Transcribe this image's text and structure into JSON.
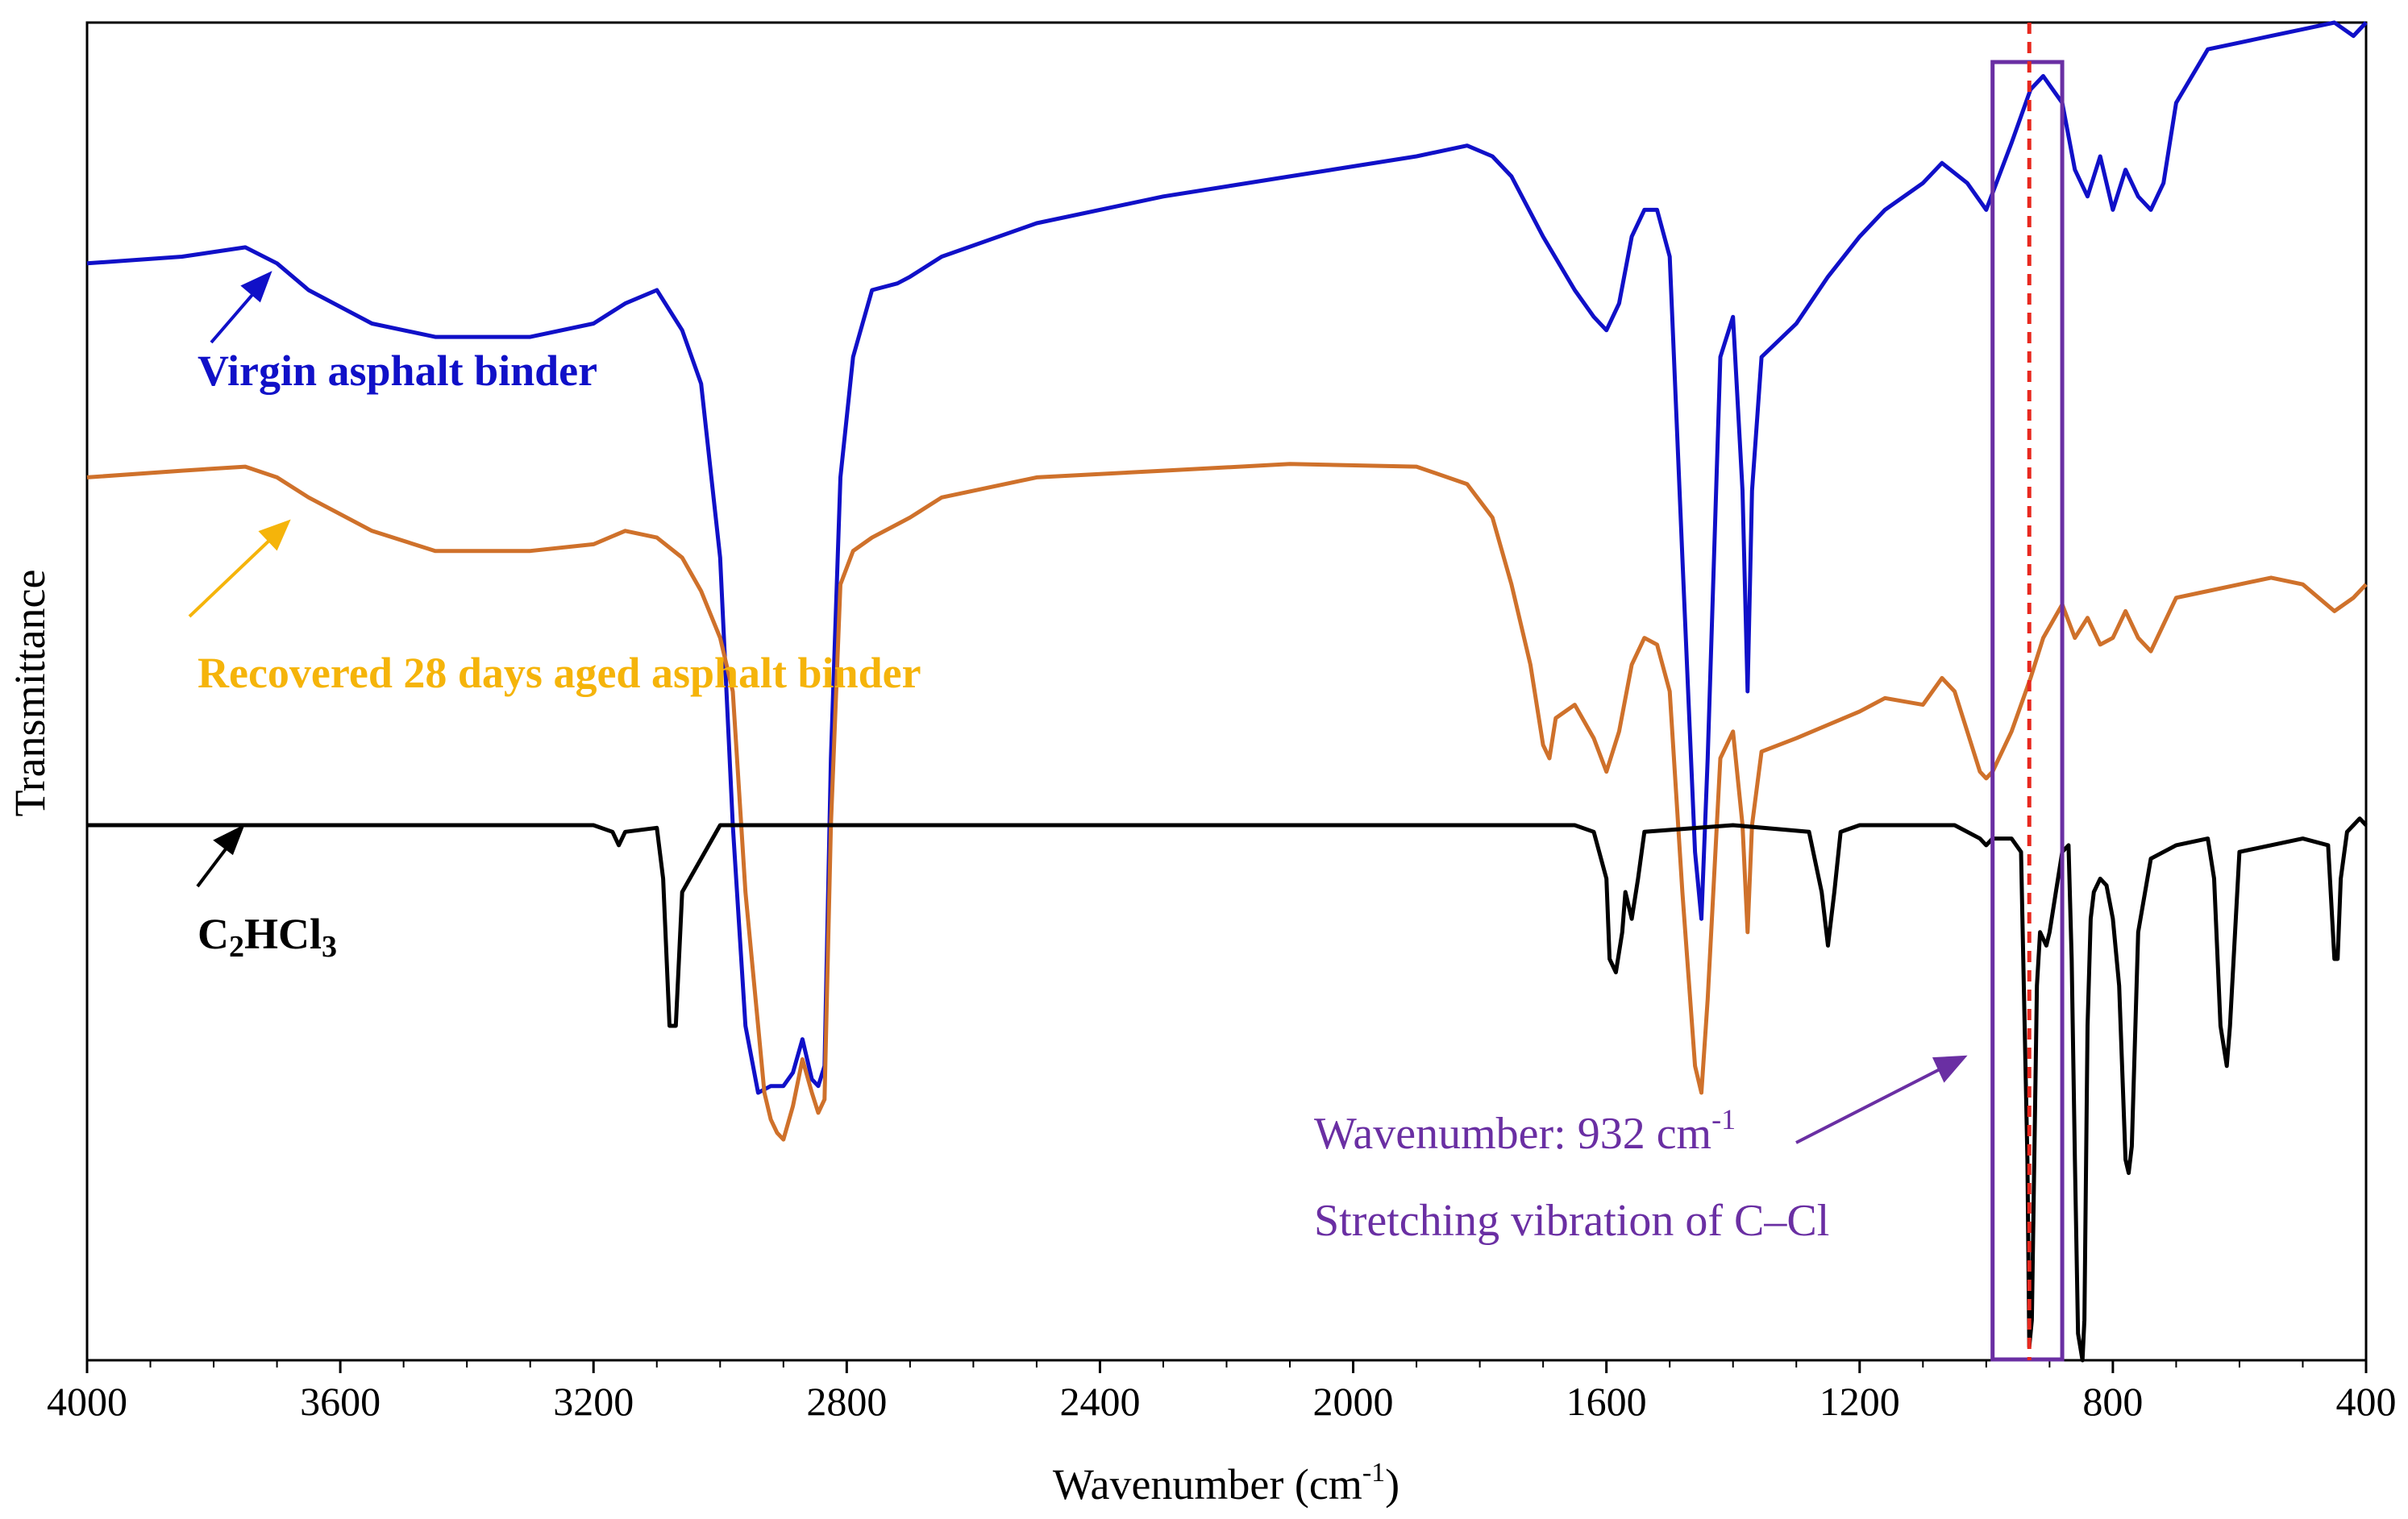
{
  "chart_data": {
    "type": "line",
    "title": "",
    "xlabel": "Wavenumber (cm",
    "xlabel_sup": "-1",
    "xlabel_close": ")",
    "ylabel": "Transmittance",
    "xlim": [
      4000,
      400
    ],
    "x_reversed": true,
    "xticks": [
      4000,
      3600,
      3200,
      2800,
      2400,
      2000,
      1600,
      1200,
      800,
      400
    ],
    "y_ticks_shown": false,
    "series": [
      {
        "name": "Virgin asphalt binder",
        "color": "#1010c8",
        "label_text": "Virgin asphalt binder",
        "x": [
          4000,
          3850,
          3750,
          3700,
          3650,
          3550,
          3450,
          3300,
          3200,
          3150,
          3100,
          3060,
          3030,
          3000,
          2980,
          2960,
          2940,
          2920,
          2900,
          2885,
          2870,
          2855,
          2845,
          2835,
          2825,
          2810,
          2790,
          2760,
          2720,
          2700,
          2650,
          2500,
          2300,
          2100,
          1900,
          1820,
          1780,
          1750,
          1700,
          1650,
          1620,
          1600,
          1580,
          1560,
          1540,
          1520,
          1500,
          1480,
          1460,
          1450,
          1440,
          1420,
          1400,
          1385,
          1377,
          1370,
          1355,
          1300,
          1250,
          1200,
          1160,
          1100,
          1070,
          1030,
          1000,
          960,
          930,
          910,
          880,
          860,
          840,
          820,
          800,
          780,
          760,
          740,
          720,
          700,
          650,
          600,
          550,
          500,
          450,
          420,
          400
        ],
        "y": [
          82.0,
          82.5,
          83.2,
          82.0,
          80.0,
          77.5,
          76.5,
          76.5,
          77.5,
          79.0,
          80.0,
          77.0,
          73.0,
          60.0,
          40.0,
          25.0,
          20.0,
          20.5,
          20.5,
          21.5,
          24.0,
          21.0,
          20.5,
          22.0,
          45.0,
          66.0,
          75.0,
          80.0,
          80.5,
          81.0,
          82.5,
          85.0,
          87.0,
          88.5,
          90.0,
          90.8,
          90.0,
          88.5,
          84.0,
          80.0,
          78.0,
          77.0,
          79.0,
          84.0,
          86.0,
          86.0,
          82.5,
          60.0,
          38.0,
          33.0,
          45.0,
          75.0,
          78.0,
          65.0,
          50.0,
          65.0,
          75.0,
          77.5,
          81.0,
          84.0,
          86.0,
          88.0,
          89.5,
          88.0,
          86.0,
          91.0,
          95.0,
          96.0,
          94.0,
          89.0,
          87.0,
          90.0,
          86.0,
          89.0,
          87.0,
          86.0,
          88.0,
          94.0,
          98.0,
          98.5,
          99.0,
          99.5,
          100.0,
          99.0,
          100.0
        ]
      },
      {
        "name": "Recovered 28 days aged asphalt binder",
        "color": "#cf712b",
        "label_text": "Recovered 28 days aged asphalt binder",
        "x": [
          4000,
          3850,
          3750,
          3700,
          3650,
          3550,
          3450,
          3300,
          3200,
          3150,
          3100,
          3060,
          3030,
          3000,
          2980,
          2960,
          2940,
          2930,
          2920,
          2910,
          2900,
          2885,
          2870,
          2855,
          2845,
          2835,
          2825,
          2810,
          2790,
          2760,
          2720,
          2700,
          2650,
          2500,
          2300,
          2100,
          1900,
          1820,
          1780,
          1750,
          1720,
          1700,
          1690,
          1680,
          1650,
          1620,
          1600,
          1580,
          1560,
          1540,
          1520,
          1500,
          1480,
          1460,
          1450,
          1440,
          1420,
          1400,
          1385,
          1377,
          1370,
          1355,
          1300,
          1250,
          1200,
          1160,
          1100,
          1070,
          1050,
          1030,
          1010,
          1000,
          990,
          960,
          930,
          910,
          880,
          860,
          840,
          820,
          800,
          780,
          760,
          740,
          720,
          700,
          650,
          600,
          550,
          500,
          450,
          420,
          400
        ],
        "y": [
          66.0,
          66.5,
          66.8,
          66.0,
          64.5,
          62.0,
          60.5,
          60.5,
          61.0,
          62.0,
          61.5,
          60.0,
          57.5,
          54.0,
          50.0,
          35.0,
          25.0,
          20.0,
          18.0,
          17.0,
          16.5,
          19.0,
          22.5,
          20.0,
          18.5,
          19.5,
          40.0,
          58.0,
          60.5,
          61.5,
          62.5,
          63.0,
          64.5,
          66.0,
          66.5,
          67.0,
          66.8,
          65.5,
          63.0,
          58.0,
          52.0,
          46.0,
          45.0,
          48.0,
          49.0,
          46.5,
          44.0,
          47.0,
          52.0,
          54.0,
          53.5,
          50.0,
          35.0,
          22.0,
          20.0,
          27.0,
          45.0,
          47.0,
          40.0,
          32.0,
          40.0,
          45.5,
          46.5,
          47.5,
          48.5,
          49.5,
          49.0,
          51.0,
          50.0,
          47.0,
          44.0,
          43.5,
          44.0,
          47.0,
          51.0,
          54.0,
          56.5,
          54.0,
          55.5,
          53.5,
          54.0,
          56.0,
          54.0,
          53.0,
          55.0,
          57.0,
          57.5,
          58.0,
          58.5,
          58.0,
          56.0,
          57.0,
          58.0
        ]
      },
      {
        "name": "C2HCl3",
        "color": "#000000",
        "label_text": "C",
        "label_sub1": "2",
        "label_mid": "HCl",
        "label_sub2": "3",
        "x": [
          4000,
          3700,
          3400,
          3200,
          3170,
          3160,
          3150,
          3100,
          3090,
          3080,
          3070,
          3060,
          3000,
          2800,
          2500,
          2000,
          1650,
          1620,
          1600,
          1595,
          1585,
          1575,
          1570,
          1560,
          1550,
          1540,
          1400,
          1280,
          1260,
          1250,
          1240,
          1230,
          1200,
          1050,
          1010,
          1000,
          990,
          960,
          945,
          935,
          932,
          928,
          920,
          915,
          905,
          900,
          890,
          880,
          870,
          865,
          860,
          855,
          848,
          845,
          840,
          835,
          830,
          820,
          810,
          800,
          790,
          780,
          775,
          770,
          760,
          740,
          700,
          650,
          640,
          630,
          620,
          615,
          600,
          500,
          460,
          450,
          445,
          440,
          430,
          420,
          410,
          400
        ],
        "y": [
          40.0,
          40.0,
          40.0,
          40.0,
          39.5,
          38.5,
          39.5,
          39.8,
          36.0,
          25.0,
          25.0,
          35.0,
          40.0,
          40.0,
          40.0,
          40.0,
          40.0,
          39.5,
          36.0,
          30.0,
          29.0,
          32.0,
          35.0,
          33.0,
          36.0,
          39.5,
          40.0,
          39.5,
          35.0,
          31.0,
          35.0,
          39.5,
          40.0,
          40.0,
          39.0,
          38.5,
          39.0,
          39.0,
          38.0,
          15.0,
          1.0,
          3.0,
          28.0,
          32.0,
          31.0,
          32.0,
          35.0,
          38.0,
          38.5,
          30.0,
          15.0,
          2.0,
          0.0,
          3.0,
          25.0,
          33.0,
          35.0,
          36.0,
          35.5,
          33.0,
          28.0,
          15.0,
          14.0,
          16.0,
          32.0,
          37.5,
          38.5,
          39.0,
          36.0,
          25.0,
          22.0,
          25.0,
          38.0,
          39.0,
          38.5,
          30.0,
          30.0,
          36.0,
          39.5,
          40.0,
          40.5,
          40.0
        ]
      }
    ],
    "annotations": {
      "highlight_wavenumber": 932,
      "box_range": [
        990,
        880
      ],
      "line1_text": "Wavenumber: 932 cm",
      "line1_sup": "-1",
      "line2_text": "Stretching vibration of C–Cl",
      "color": "#6a2fa3",
      "ref_line_color": "#e8281e"
    }
  }
}
